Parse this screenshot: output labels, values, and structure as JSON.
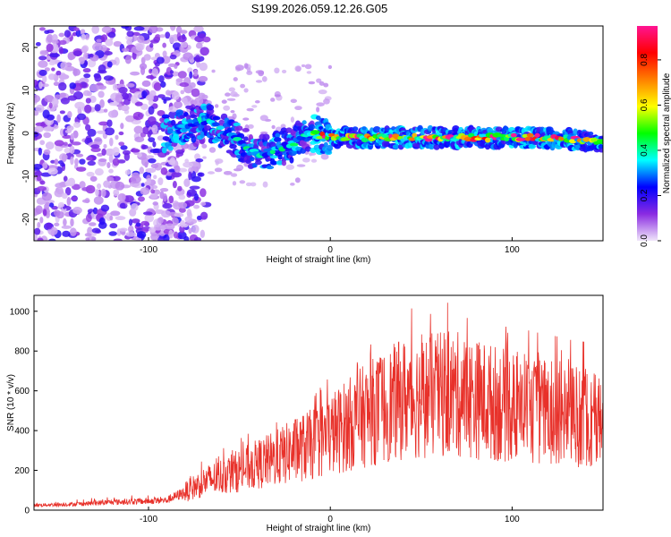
{
  "chart_data": [
    {
      "type": "heatmap",
      "title": "S199.2026.059.12.26.G05",
      "xlabel": "Height of straight line (km)",
      "ylabel": "Frequency (Hz)",
      "xlim": [
        -163,
        150
      ],
      "ylim": [
        -25,
        25
      ],
      "xticks": [
        -100,
        0,
        100
      ],
      "yticks": [
        20,
        10,
        0,
        -10,
        -20
      ],
      "colorbar": {
        "label": "Normalized spectral amplitude",
        "range": [
          0,
          0.95
        ],
        "ticks": [
          "0.0",
          "0.2",
          "0.4",
          "0.6",
          "0.8"
        ],
        "tick_values": [
          0,
          0.2,
          0.4,
          0.6,
          0.8
        ],
        "colors": [
          "#f0e6fa",
          "#8a2be2",
          "#0000ff",
          "#00ffff",
          "#00ff00",
          "#ffff00",
          "#ff8000",
          "#ff0000",
          "#ff1493"
        ]
      },
      "ridge": {
        "x": [
          -90,
          -80,
          -70,
          -60,
          -50,
          -40,
          -30,
          -20,
          -10,
          0,
          20,
          40,
          60,
          80,
          100,
          120,
          150
        ],
        "frequency": [
          0,
          2,
          3,
          1,
          -2,
          -5,
          -4,
          -2,
          0,
          -1,
          -1,
          -1,
          -1,
          -1,
          -1,
          -1,
          -2
        ]
      }
    },
    {
      "type": "line",
      "xlabel": "Height of straight line (km)",
      "ylabel": "SNR (10 * v/v)",
      "xlim": [
        -163,
        150
      ],
      "ylim": [
        0,
        1080
      ],
      "xticks": [
        -100,
        0,
        100
      ],
      "yticks": [
        0,
        200,
        400,
        600,
        800,
        1000
      ],
      "series": [
        {
          "name": "SNR",
          "color": "#e8312a",
          "x": [
            -163,
            -140,
            -120,
            -100,
            -90,
            -80,
            -70,
            -60,
            -50,
            -40,
            -30,
            -20,
            -10,
            0,
            10,
            20,
            30,
            40,
            50,
            60,
            70,
            80,
            90,
            100,
            110,
            120,
            130,
            140,
            150
          ],
          "envelope": [
            25,
            30,
            40,
            45,
            50,
            90,
            140,
            170,
            200,
            230,
            260,
            300,
            330,
            380,
            430,
            480,
            520,
            560,
            570,
            580,
            580,
            560,
            540,
            520,
            500,
            490,
            480,
            470,
            440
          ]
        }
      ]
    }
  ]
}
